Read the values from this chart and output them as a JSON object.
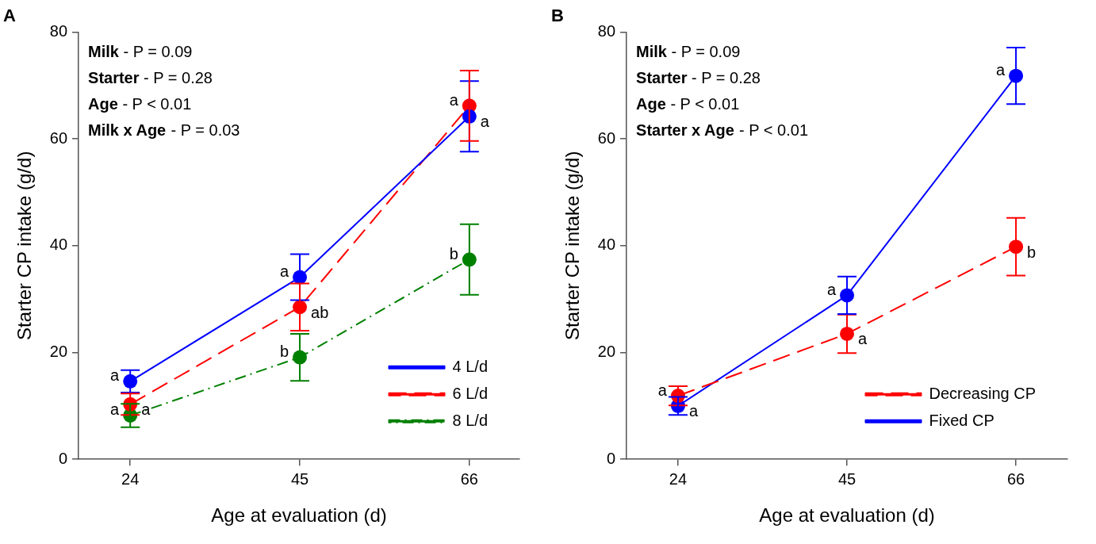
{
  "chart_data": [
    {
      "type": "line",
      "title": "A",
      "xlabel": "Age at evaluation (d)",
      "ylabel": "Starter CP intake (g/d)",
      "x": [
        24,
        45,
        66
      ],
      "xlim": [
        17.6,
        72.2
      ],
      "xticks": [
        24,
        45,
        66
      ],
      "ylim": [
        0,
        80
      ],
      "yticks": [
        0,
        20,
        40,
        60,
        80
      ],
      "grid": false,
      "legend": "bottom right",
      "marker": "circle",
      "series": [
        {
          "name": "4 L/d",
          "color": "#0000ff",
          "line_style": "solid",
          "values": [
            14.6,
            34.1,
            64.2
          ],
          "errors": [
            2.1,
            4.3,
            6.6
          ]
        },
        {
          "name": "6 L/d",
          "color": "#ff0000",
          "line_style": "dashed",
          "values": [
            10.3,
            28.5,
            66.2
          ],
          "errors": [
            2.0,
            4.4,
            6.6
          ]
        },
        {
          "name": "8 L/d",
          "color": "#008000",
          "line_style": "dashdot",
          "values": [
            8.2,
            19.1,
            37.4
          ],
          "errors": [
            2.2,
            4.4,
            6.6
          ]
        }
      ],
      "annotations": [
        "Milk - P = 0.09",
        "Starter - P = 0.28",
        "Age - P < 0.01",
        "Milk x Age - P = 0.03",
        {
          "text": "a",
          "x": 24,
          "y": 14.6
        },
        {
          "text": "a",
          "x": 24,
          "y": 10.3
        },
        {
          "text": "a",
          "x": 24,
          "y": 8.2
        },
        {
          "text": "a",
          "x": 45,
          "y": 34.1
        },
        {
          "text": "ab",
          "x": 45,
          "y": 28.5
        },
        {
          "text": "b",
          "x": 45,
          "y": 19.1
        },
        {
          "text": "a",
          "x": 66,
          "y": 66.2
        },
        {
          "text": "a",
          "x": 66,
          "y": 64.2
        },
        {
          "text": "b",
          "x": 66,
          "y": 37.4
        }
      ]
    },
    {
      "type": "line",
      "title": "B",
      "xlabel": "Age at evaluation (d)",
      "ylabel": "Starter CP intake (g/d)",
      "x": [
        24,
        45,
        66
      ],
      "xlim": [
        17.6,
        72.4
      ],
      "xticks": [
        24,
        45,
        66
      ],
      "ylim": [
        0,
        80
      ],
      "yticks": [
        0,
        20,
        40,
        60,
        80
      ],
      "grid": false,
      "legend": "bottom right",
      "marker": "circle",
      "series": [
        {
          "name": "Decreasing CP",
          "color": "#ff0000",
          "line_style": "dashed",
          "values": [
            11.9,
            23.5,
            39.8
          ],
          "errors": [
            1.8,
            3.6,
            5.4
          ]
        },
        {
          "name": "Fixed CP",
          "color": "#0000ff",
          "line_style": "solid",
          "values": [
            10.0,
            30.7,
            71.8
          ],
          "errors": [
            1.7,
            3.5,
            5.3
          ]
        }
      ],
      "annotations": [
        "Milk - P = 0.09",
        "Starter - P = 0.28",
        "Age - P < 0.01",
        "Starter x Age - P < 0.01",
        {
          "text": "a",
          "x": 24,
          "y": 11.9
        },
        {
          "text": "a",
          "x": 24,
          "y": 10.0
        },
        {
          "text": "a",
          "x": 45,
          "y": 30.7
        },
        {
          "text": "a",
          "x": 45,
          "y": 23.5
        },
        {
          "text": "a",
          "x": 66,
          "y": 71.8
        },
        {
          "text": "b",
          "x": 66,
          "y": 39.8
        }
      ]
    }
  ]
}
